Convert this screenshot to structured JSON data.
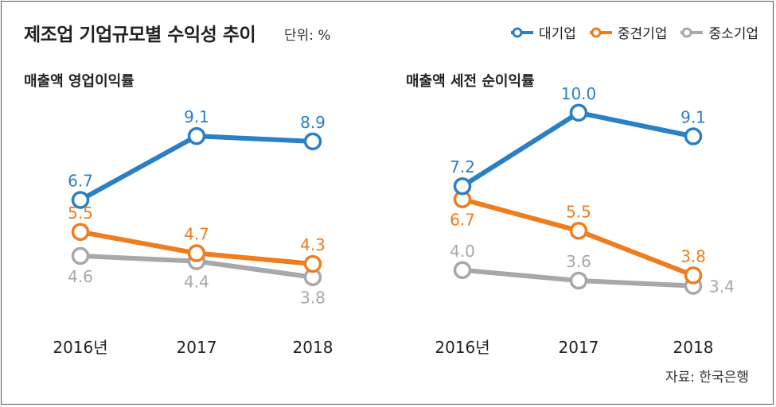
{
  "header": {
    "title": "제조업 기업규모별 수익성 추이",
    "unit": "단위: %"
  },
  "legend": [
    {
      "label": "대기업",
      "color": "#2b7fc4"
    },
    {
      "label": "중견기업",
      "color": "#ee7d1f"
    },
    {
      "label": "중소기업",
      "color": "#a7a8aa"
    }
  ],
  "source": "자료: 한국은행",
  "chart_data": [
    {
      "type": "line",
      "title": "매출액 영업이익률",
      "categories": [
        "2016년",
        "2017",
        "2018"
      ],
      "series": [
        {
          "name": "대기업",
          "values": [
            6.7,
            9.1,
            8.9
          ],
          "labels": [
            "6.7",
            "9.1",
            "8.9"
          ],
          "color": "#2b7fc4"
        },
        {
          "name": "중견기업",
          "values": [
            5.5,
            4.7,
            4.3
          ],
          "labels": [
            "5.5",
            "4.7",
            "4.3"
          ],
          "color": "#ee7d1f"
        },
        {
          "name": "중소기업",
          "values": [
            4.6,
            4.4,
            3.8
          ],
          "labels": [
            "4.6",
            "4.4",
            "3.8"
          ],
          "color": "#a7a8aa"
        }
      ]
    },
    {
      "type": "line",
      "title": "매출액 세전 순이익률",
      "categories": [
        "2016년",
        "2017",
        "2018"
      ],
      "series": [
        {
          "name": "대기업",
          "values": [
            7.2,
            10.0,
            9.1
          ],
          "labels": [
            "7.2",
            "10.0",
            "9.1"
          ],
          "color": "#2b7fc4"
        },
        {
          "name": "중견기업",
          "values": [
            6.7,
            5.5,
            3.8
          ],
          "labels": [
            "6.7",
            "5.5",
            "3.8"
          ],
          "color": "#ee7d1f"
        },
        {
          "name": "중소기업",
          "values": [
            4.0,
            3.6,
            3.4
          ],
          "labels": [
            "4.0",
            "3.6",
            "3.4"
          ],
          "color": "#a7a8aa"
        }
      ]
    }
  ]
}
